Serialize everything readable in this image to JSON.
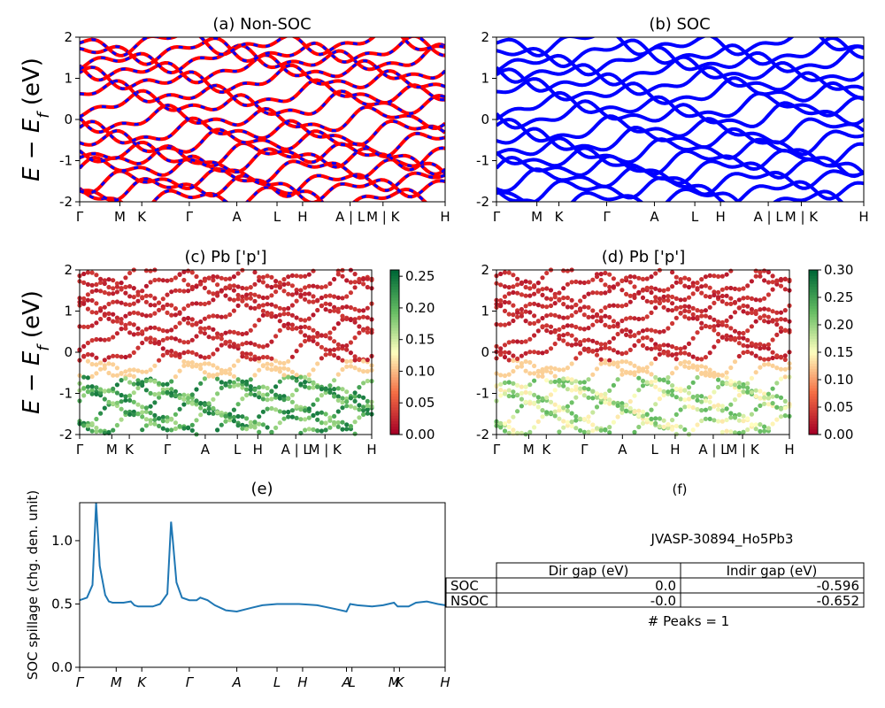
{
  "colors": {
    "nonsoc_a": "#ff0000",
    "nonsoc_b": "#0000ff",
    "soc": "#0000ff",
    "spillage": "#1f77b4",
    "axis": "#000000"
  },
  "kpath": {
    "labels": [
      "Γ",
      "M",
      "K",
      "Γ",
      "A",
      "L",
      "H",
      "A | L",
      "M | K",
      "H"
    ],
    "positions": [
      0,
      0.11,
      0.17,
      0.3,
      0.43,
      0.54,
      0.61,
      0.74,
      0.83,
      1.0
    ]
  },
  "kpath_cd": {
    "labels": [
      "Γ",
      "M",
      "K",
      "Γ",
      "A",
      "L",
      "H",
      "A | L",
      "M | K",
      "H"
    ],
    "positions": [
      0,
      0.11,
      0.17,
      0.3,
      0.43,
      0.54,
      0.61,
      0.74,
      0.84,
      1.0
    ]
  },
  "kpath_e": {
    "labels": [
      "Γ",
      "M",
      "K",
      "Γ",
      "A",
      "L",
      "H",
      "A",
      "L",
      "M",
      "K",
      "H"
    ],
    "positions": [
      0,
      0.1,
      0.17,
      0.3,
      0.43,
      0.54,
      0.61,
      0.73,
      0.745,
      0.86,
      0.875,
      1.0
    ]
  },
  "ylabel_energy": "E − E_f (eV)",
  "chart_data": [
    {
      "panel": "a",
      "type": "line",
      "title": "(a) Non-SOC",
      "ylabel": "E − Ef (eV)",
      "ylim": [
        -2,
        2
      ],
      "yticks": [
        -2,
        -1,
        0,
        1,
        2
      ],
      "style": "red/blue dashed bands",
      "band_offsets": [
        -1.9,
        -1.65,
        -1.5,
        -1.2,
        -0.95,
        -0.85,
        -0.55,
        -0.3,
        0.0,
        0.35,
        0.6,
        0.95,
        1.2,
        1.45,
        1.65,
        1.85
      ]
    },
    {
      "panel": "b",
      "type": "line",
      "title": "(b) SOC",
      "ylim": [
        -2,
        2
      ],
      "yticks": [
        -2,
        -1,
        0,
        1,
        2
      ],
      "style": "solid blue bands",
      "band_offsets": [
        -1.95,
        -1.7,
        -1.45,
        -1.2,
        -1.0,
        -0.75,
        -0.5,
        -0.25,
        0.1,
        0.3,
        0.65,
        0.9,
        1.15,
        1.4,
        1.6,
        1.85
      ]
    },
    {
      "panel": "c",
      "type": "scatter",
      "title": "(c)  Pb ['p']",
      "ylim": [
        -2,
        2
      ],
      "yticks": [
        -2,
        -1,
        0,
        1,
        2
      ],
      "colorbar": {
        "min": 0.0,
        "max": 0.26,
        "ticks": [
          0.0,
          0.05,
          0.1,
          0.15,
          0.2,
          0.25
        ]
      }
    },
    {
      "panel": "d",
      "type": "scatter",
      "title": "(d) Pb ['p']",
      "ylim": [
        -2,
        2
      ],
      "yticks": [
        -2,
        -1,
        0,
        1,
        2
      ],
      "colorbar": {
        "min": 0.0,
        "max": 0.3,
        "ticks": [
          0.0,
          0.05,
          0.1,
          0.15,
          0.2,
          0.25,
          0.3
        ]
      }
    },
    {
      "panel": "e",
      "type": "line",
      "title": "(e)",
      "ylabel": "SOC spillage (chg. den. unit)",
      "ylim": [
        0,
        1.3
      ],
      "yticks": [
        0.0,
        0.5,
        1.0
      ],
      "x": [
        0,
        0.02,
        0.035,
        0.045,
        0.055,
        0.07,
        0.08,
        0.09,
        0.1,
        0.12,
        0.14,
        0.15,
        0.16,
        0.2,
        0.22,
        0.24,
        0.25,
        0.255,
        0.265,
        0.28,
        0.3,
        0.32,
        0.33,
        0.35,
        0.37,
        0.4,
        0.43,
        0.47,
        0.5,
        0.54,
        0.6,
        0.65,
        0.7,
        0.73,
        0.74,
        0.76,
        0.8,
        0.83,
        0.86,
        0.87,
        0.9,
        0.92,
        0.95,
        0.98,
        1.0
      ],
      "y": [
        0.53,
        0.55,
        0.65,
        1.32,
        0.8,
        0.57,
        0.52,
        0.51,
        0.51,
        0.51,
        0.52,
        0.49,
        0.48,
        0.48,
        0.5,
        0.58,
        1.15,
        1.0,
        0.67,
        0.55,
        0.53,
        0.53,
        0.55,
        0.53,
        0.49,
        0.45,
        0.44,
        0.47,
        0.49,
        0.5,
        0.5,
        0.49,
        0.46,
        0.44,
        0.5,
        0.49,
        0.48,
        0.49,
        0.51,
        0.48,
        0.48,
        0.51,
        0.52,
        0.5,
        0.49
      ]
    }
  ],
  "panel_f": {
    "title": "(f)",
    "name": "JVASP-30894_Ho5Pb3",
    "headers": [
      "",
      "Dir gap (eV)",
      "Indir gap (eV)"
    ],
    "rows": [
      {
        "label": "SOC",
        "dir": "0.0",
        "indir": "-0.596"
      },
      {
        "label": "NSOC",
        "dir": "-0.0",
        "indir": "-0.652"
      }
    ],
    "peaks": "# Peaks = 1"
  }
}
